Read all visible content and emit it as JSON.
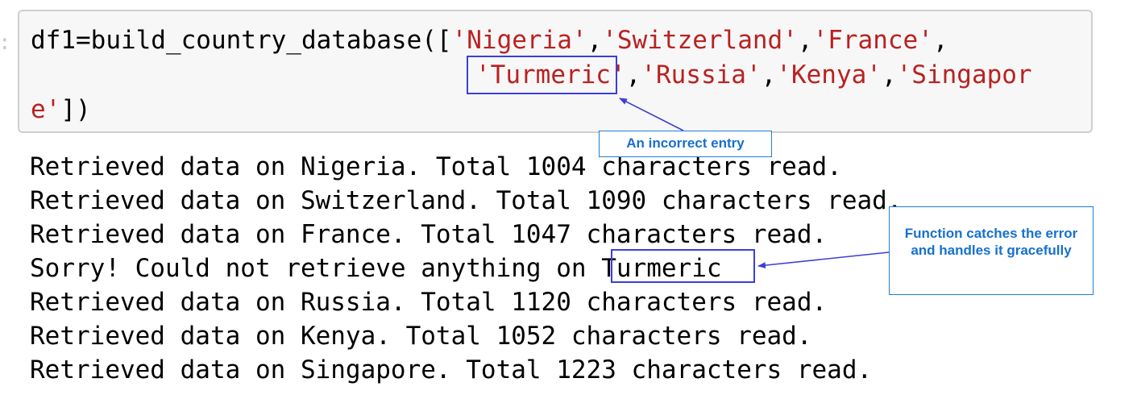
{
  "prompt": ":",
  "code_cell": {
    "line1": {
      "prefix": "df1=build_country_database([",
      "s1": "'Nigeria'",
      "c1": ",",
      "s2": "'Switzerland'",
      "c2": ",",
      "s3": "'France'",
      "c3": ","
    },
    "line2": {
      "s4": "'Turmeric'",
      "c4": ",",
      "s5": "'Russia'",
      "c5": ",",
      "s6": "'Kenya'",
      "c6": ",",
      "s7a": "'Singapor"
    },
    "line3": {
      "s7b": "e'",
      "suffix": "])"
    }
  },
  "output_lines": [
    "Retrieved data on Nigeria. Total 1004 characters read.",
    "Retrieved data on Switzerland. Total 1090 characters read.",
    "Retrieved data on France. Total 1047 characters read.",
    "Sorry! Could not retrieve anything on Turmeric",
    "Retrieved data on Russia. Total 1120 characters read.",
    "Retrieved data on Kenya. Total 1052 characters read.",
    "Retrieved data on Singapore. Total 1223 characters read."
  ],
  "callouts": {
    "incorrect_entry": "An incorrect entry",
    "handles_error": "Function catches the error and handles it gracefully"
  },
  "colors": {
    "string": "#ba2121",
    "highlight_box": "#3c3fd8",
    "callout_text": "#1670d0",
    "callout_border": "#1f7fd6",
    "cell_background": "#f7f7f7"
  }
}
